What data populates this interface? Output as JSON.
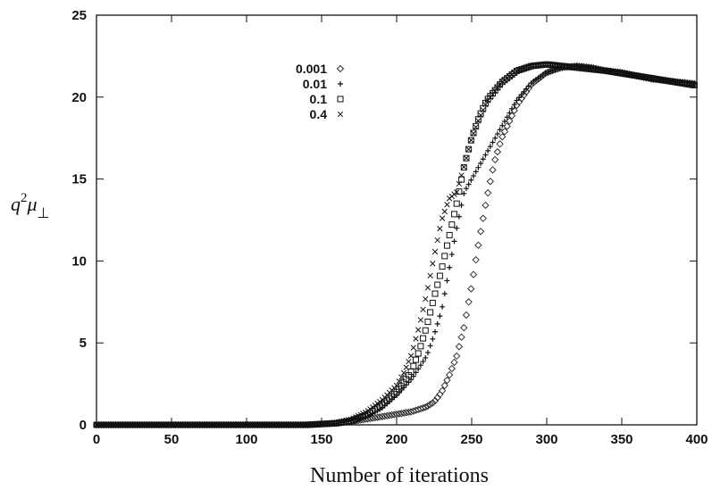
{
  "chart_data": {
    "type": "scatter",
    "title": "",
    "xlabel": "Number of iterations",
    "ylabel": {
      "base": "q",
      "sup": "2",
      "mid": "μ",
      "sub": "⊥"
    },
    "xlim": [
      0,
      400
    ],
    "ylim": [
      0,
      25
    ],
    "xticks": [
      "0",
      "50",
      "100",
      "150",
      "200",
      "250",
      "300",
      "350",
      "400"
    ],
    "yticks": [
      "0",
      "5",
      "10",
      "15",
      "20",
      "25"
    ],
    "grid": false,
    "legend_position": "top-left",
    "series": [
      {
        "name": "0.001",
        "marker": "diamond",
        "points": [
          [
            0,
            0
          ],
          [
            20,
            0
          ],
          [
            40,
            0
          ],
          [
            60,
            0
          ],
          [
            80,
            0
          ],
          [
            100,
            0
          ],
          [
            120,
            0
          ],
          [
            140,
            0
          ],
          [
            150,
            0.05
          ],
          [
            160,
            0.1
          ],
          [
            170,
            0.2
          ],
          [
            180,
            0.35
          ],
          [
            190,
            0.5
          ],
          [
            200,
            0.65
          ],
          [
            210,
            0.8
          ],
          [
            220,
            1.1
          ],
          [
            225,
            1.4
          ],
          [
            230,
            2
          ],
          [
            235,
            3
          ],
          [
            240,
            4.2
          ],
          [
            245,
            6
          ],
          [
            250,
            8.5
          ],
          [
            255,
            11.3
          ],
          [
            260,
            13.8
          ],
          [
            265,
            16
          ],
          [
            270,
            17.5
          ],
          [
            280,
            19.5
          ],
          [
            290,
            20.8
          ],
          [
            300,
            21.5
          ],
          [
            310,
            21.8
          ],
          [
            320,
            21.9
          ],
          [
            330,
            21.8
          ],
          [
            340,
            21.6
          ],
          [
            350,
            21.5
          ],
          [
            360,
            21.3
          ],
          [
            370,
            21.1
          ],
          [
            380,
            21
          ],
          [
            390,
            20.9
          ],
          [
            400,
            20.8
          ]
        ]
      },
      {
        "name": "0.01",
        "marker": "plus",
        "points": [
          [
            0,
            0
          ],
          [
            20,
            0
          ],
          [
            40,
            0
          ],
          [
            60,
            0
          ],
          [
            80,
            0
          ],
          [
            100,
            0
          ],
          [
            120,
            0
          ],
          [
            140,
            0
          ],
          [
            150,
            0.05
          ],
          [
            160,
            0.1
          ],
          [
            170,
            0.25
          ],
          [
            180,
            0.5
          ],
          [
            190,
            1
          ],
          [
            200,
            1.8
          ],
          [
            210,
            2.8
          ],
          [
            220,
            4.2
          ],
          [
            225,
            5.5
          ],
          [
            230,
            7
          ],
          [
            235,
            9.5
          ],
          [
            240,
            12
          ],
          [
            245,
            14.2
          ],
          [
            250,
            15
          ],
          [
            255,
            15.8
          ],
          [
            260,
            16.6
          ],
          [
            270,
            18.2
          ],
          [
            280,
            19.8
          ],
          [
            290,
            20.9
          ],
          [
            300,
            21.5
          ],
          [
            310,
            21.8
          ],
          [
            320,
            21.9
          ],
          [
            330,
            21.8
          ],
          [
            340,
            21.6
          ],
          [
            350,
            21.5
          ],
          [
            360,
            21.3
          ],
          [
            370,
            21.1
          ],
          [
            380,
            21
          ],
          [
            390,
            20.9
          ],
          [
            400,
            20.8
          ]
        ]
      },
      {
        "name": "0.1",
        "marker": "square",
        "points": [
          [
            0,
            0
          ],
          [
            20,
            0
          ],
          [
            40,
            0
          ],
          [
            60,
            0
          ],
          [
            80,
            0
          ],
          [
            100,
            0
          ],
          [
            120,
            0
          ],
          [
            140,
            0
          ],
          [
            150,
            0.05
          ],
          [
            160,
            0.1
          ],
          [
            170,
            0.25
          ],
          [
            180,
            0.6
          ],
          [
            190,
            1.2
          ],
          [
            200,
            2
          ],
          [
            205,
            2.6
          ],
          [
            210,
            3.3
          ],
          [
            215,
            4.5
          ],
          [
            220,
            6
          ],
          [
            225,
            7.8
          ],
          [
            230,
            9.5
          ],
          [
            235,
            11.5
          ],
          [
            240,
            13.5
          ],
          [
            245,
            15.8
          ],
          [
            250,
            17.5
          ],
          [
            255,
            18.8
          ],
          [
            260,
            19.8
          ],
          [
            270,
            20.9
          ],
          [
            280,
            21.6
          ],
          [
            290,
            21.9
          ],
          [
            300,
            22
          ],
          [
            310,
            21.9
          ],
          [
            320,
            21.8
          ],
          [
            340,
            21.6
          ],
          [
            360,
            21.3
          ],
          [
            380,
            21
          ],
          [
            400,
            20.7
          ]
        ]
      },
      {
        "name": "0.4",
        "marker": "cross",
        "points": [
          [
            0,
            0
          ],
          [
            20,
            0
          ],
          [
            40,
            0
          ],
          [
            60,
            0
          ],
          [
            80,
            0
          ],
          [
            100,
            0
          ],
          [
            120,
            0
          ],
          [
            140,
            0
          ],
          [
            150,
            0.05
          ],
          [
            160,
            0.15
          ],
          [
            170,
            0.35
          ],
          [
            180,
            0.8
          ],
          [
            190,
            1.5
          ],
          [
            200,
            2.4
          ],
          [
            205,
            3.2
          ],
          [
            210,
            4.3
          ],
          [
            215,
            6
          ],
          [
            220,
            8
          ],
          [
            225,
            10.3
          ],
          [
            230,
            12.5
          ],
          [
            235,
            13.8
          ],
          [
            240,
            14.2
          ],
          [
            245,
            15.8
          ],
          [
            250,
            17.5
          ],
          [
            255,
            18.7
          ],
          [
            260,
            19.7
          ],
          [
            270,
            20.9
          ],
          [
            280,
            21.6
          ],
          [
            290,
            21.9
          ],
          [
            300,
            22
          ],
          [
            310,
            21.9
          ],
          [
            320,
            21.8
          ],
          [
            340,
            21.6
          ],
          [
            360,
            21.3
          ],
          [
            380,
            21
          ],
          [
            400,
            20.7
          ]
        ]
      }
    ]
  }
}
